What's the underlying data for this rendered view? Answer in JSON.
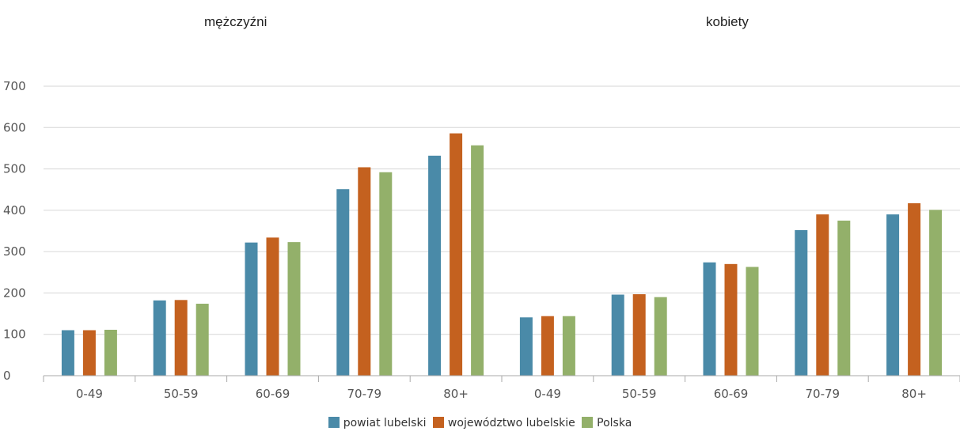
{
  "chart_data": {
    "type": "bar",
    "group_titles": [
      "mężczyźni",
      "kobiety"
    ],
    "categories": [
      "0-49",
      "50-59",
      "60-69",
      "70-79",
      "80+",
      "0-49",
      "50-59",
      "60-69",
      "70-79",
      "80+"
    ],
    "series": [
      {
        "name": "powiat lubelski",
        "color": "#4a8aa8",
        "values": [
          110,
          182,
          322,
          451,
          532,
          141,
          196,
          274,
          352,
          390
        ]
      },
      {
        "name": "województwo lubelskie",
        "color": "#c4611f",
        "values": [
          110,
          183,
          334,
          504,
          586,
          144,
          197,
          270,
          390,
          417
        ]
      },
      {
        "name": "Polska",
        "color": "#93b06a",
        "values": [
          111,
          174,
          323,
          492,
          557,
          144,
          190,
          263,
          375,
          401
        ]
      }
    ],
    "ylim": [
      0,
      700
    ],
    "yticks": [
      "0",
      "100",
      "200",
      "300",
      "400",
      "500",
      "600",
      "700"
    ],
    "grid": true,
    "legend_position": "bottom-center"
  }
}
